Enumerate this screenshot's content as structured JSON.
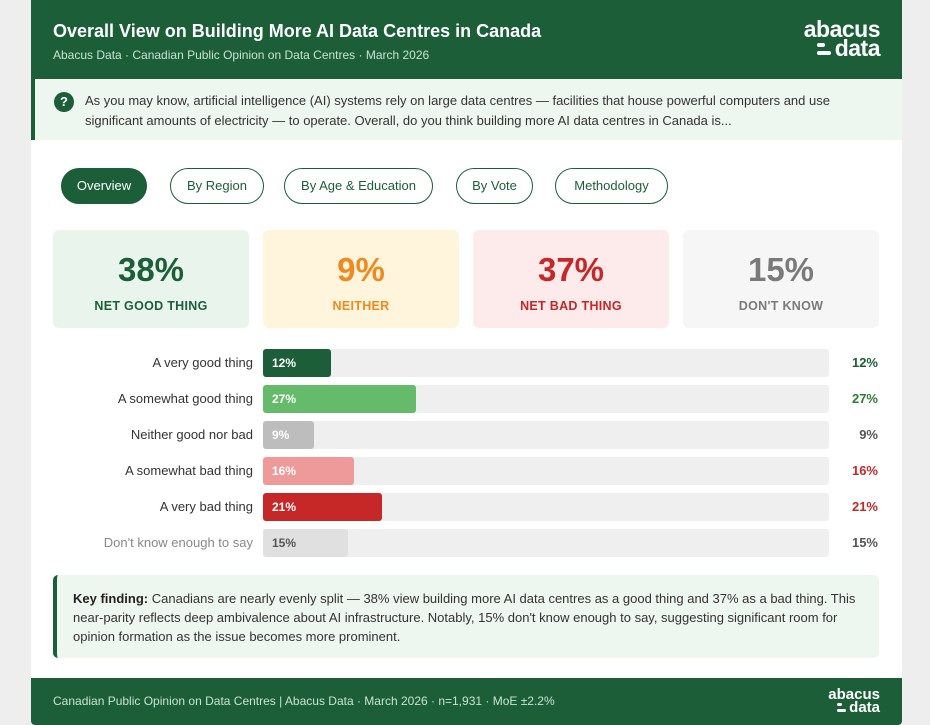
{
  "header": {
    "title": "Overall View on Building More AI Data Centres in Canada",
    "subtitle": "Abacus Data · Canadian Public Opinion on Data Centres · March 2026",
    "logo_top": "abacus",
    "logo_bottom": "data"
  },
  "question": {
    "icon": "?",
    "text": "As you may know, artificial intelligence (AI) systems rely on large data centres — facilities that house powerful computers and use significant amounts of electricity — to operate. Overall, do you think building more AI data centres in Canada is..."
  },
  "tabs": [
    {
      "label": "Overview",
      "active": true
    },
    {
      "label": "By Region",
      "active": false
    },
    {
      "label": "By Age & Education",
      "active": false
    },
    {
      "label": "By Vote",
      "active": false
    },
    {
      "label": "Methodology",
      "active": false
    }
  ],
  "stats": [
    {
      "value": "38%",
      "label": "NET GOOD THING",
      "color": "#1b5e38",
      "bg": "#e9f5ec"
    },
    {
      "value": "9%",
      "label": "NEITHER",
      "color": "#ef8a1f",
      "bg": "#fff5dd"
    },
    {
      "value": "37%",
      "label": "NET BAD THING",
      "color": "#c62828",
      "bg": "#fdeaea"
    },
    {
      "value": "15%",
      "label": "DON'T KNOW",
      "color": "#7a7a7a",
      "bg": "#f6f6f6"
    }
  ],
  "chart_data": {
    "type": "bar",
    "orientation": "horizontal",
    "categories": [
      "A very good thing",
      "A somewhat good thing",
      "Neither good nor bad",
      "A somewhat bad thing",
      "A very bad thing",
      "Don't know enough to say"
    ],
    "values": [
      12,
      27,
      9,
      16,
      21,
      15
    ],
    "value_labels": [
      "12%",
      "27%",
      "9%",
      "16%",
      "21%",
      "15%"
    ],
    "colors": [
      "#1b5e38",
      "#66bb6a",
      "#bdbdbd",
      "#ef9a9a",
      "#c62828",
      "#e0e0e0"
    ],
    "label_colors": [
      "#ffffff",
      "#ffffff",
      "#ffffff",
      "#ffffff",
      "#ffffff",
      "#555555"
    ],
    "value_colors": [
      "#1b5e38",
      "#2e7d32",
      "#555555",
      "#c62828",
      "#c62828",
      "#555555"
    ],
    "xlim": [
      0,
      100
    ],
    "grid": false,
    "legend": "none"
  },
  "finding": {
    "label": "Key finding:",
    "text": "Canadians are nearly evenly split — 38% view building more AI data centres as a good thing and 37% as a bad thing. This near-parity reflects deep ambivalence about AI infrastructure. Notably, 15% don't know enough to say, suggesting significant room for opinion formation as the issue becomes more prominent."
  },
  "footer": {
    "text": "Canadian Public Opinion on Data Centres | Abacus Data · March 2026 · n=1,931 · MoE ±2.2%",
    "logo_top": "abacus",
    "logo_bottom": "data"
  }
}
